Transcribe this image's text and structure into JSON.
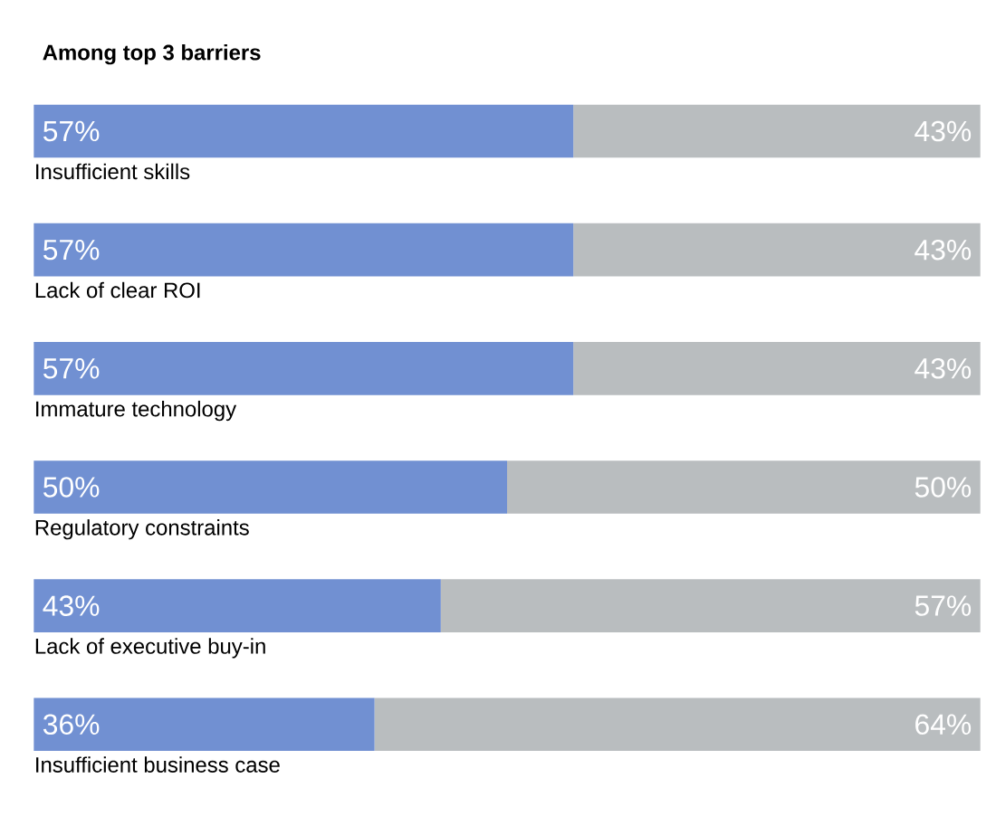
{
  "chart_data": {
    "type": "bar",
    "orientation": "horizontal",
    "stacked": true,
    "title": "Among top 3 barriers",
    "categories": [
      "Insufficient skills",
      "Lack of clear ROI",
      "Immature technology",
      "Regulatory constraints",
      "Lack of executive buy-in",
      "Insufficient business case"
    ],
    "series": [
      {
        "color": "#7190d2",
        "values": [
          57,
          57,
          57,
          50,
          43,
          36
        ],
        "value_labels": [
          "57%",
          "57%",
          "57%",
          "50%",
          "43%",
          "36%"
        ]
      },
      {
        "color": "#b9bdbf",
        "values": [
          43,
          43,
          43,
          50,
          57,
          64
        ],
        "value_labels": [
          "43%",
          "43%",
          "43%",
          "50%",
          "57%",
          "64%"
        ]
      }
    ]
  }
}
